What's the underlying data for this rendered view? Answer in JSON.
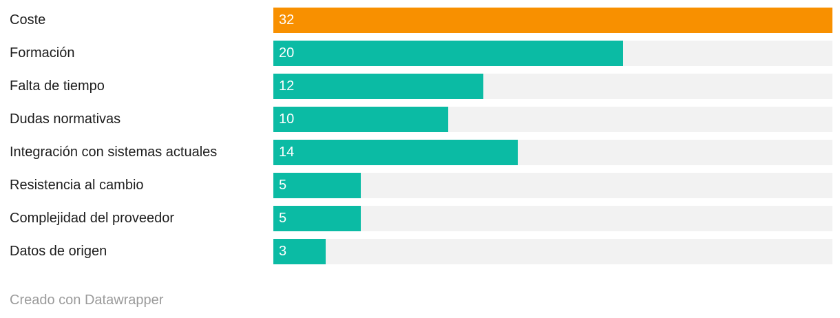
{
  "chart_data": {
    "type": "bar",
    "orientation": "horizontal",
    "title": "",
    "xlabel": "",
    "ylabel": "",
    "xlim": [
      0,
      32
    ],
    "grid": false,
    "legend": false,
    "value_label_position": "inside-start",
    "categories": [
      "Coste",
      "Formación",
      "Falta de tiempo",
      "Dudas normativas",
      "Integración con sistemas actuales",
      "Resistencia al cambio",
      "Complejidad del proveedor",
      "Datos de origen"
    ],
    "values": [
      32,
      20,
      12,
      10,
      14,
      5,
      5,
      3
    ],
    "bar_colors": [
      "#f89000",
      "#0bbba4",
      "#0bbba4",
      "#0bbba4",
      "#0bbba4",
      "#0bbba4",
      "#0bbba4",
      "#0bbba4"
    ],
    "track_color": "#f2f2f2"
  },
  "colors": {
    "highlight_bar": "#f89000",
    "default_bar": "#0bbba4",
    "track": "#f2f2f2",
    "category_label": "#1d1d1d",
    "value_label": "#ffffff",
    "credit": "#9b9b9b",
    "background": "#ffffff"
  },
  "footer": {
    "credit": "Creado con Datawrapper"
  }
}
